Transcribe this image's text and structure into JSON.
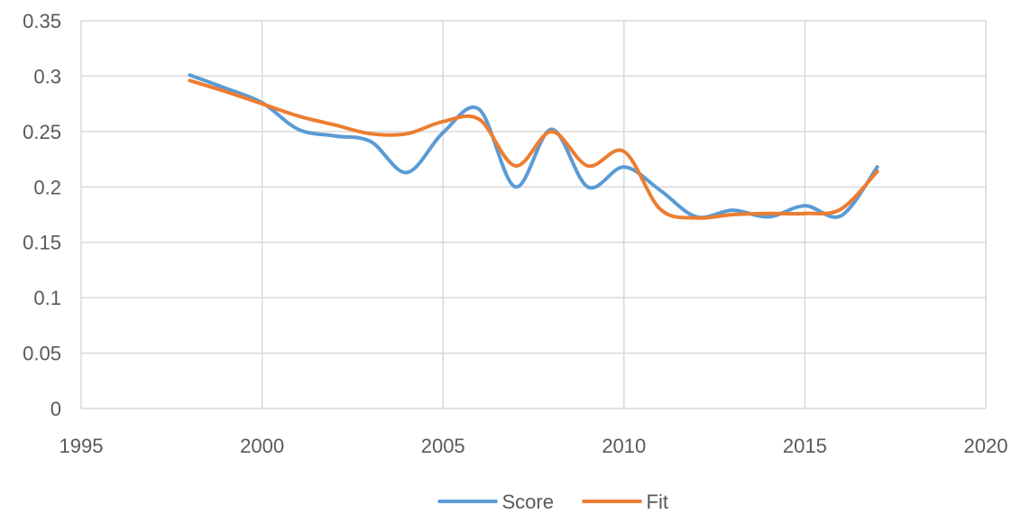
{
  "chart_data": {
    "type": "line",
    "title": "",
    "xlabel": "",
    "ylabel": "",
    "xlim": [
      1995,
      2020
    ],
    "ylim": [
      0,
      0.35
    ],
    "x_ticks": [
      "1995",
      "2000",
      "2005",
      "2010",
      "2015",
      "2020"
    ],
    "y_ticks": [
      "0",
      "0.05",
      "0.1",
      "0.15",
      "0.2",
      "0.25",
      "0.3",
      "0.35"
    ],
    "grid": true,
    "smooth": true,
    "legend_position": "bottom",
    "x": [
      1998,
      1999,
      2000,
      2001,
      2002,
      2003,
      2004,
      2005,
      2006,
      2007,
      2008,
      2009,
      2010,
      2011,
      2012,
      2013,
      2014,
      2015,
      2016,
      2017
    ],
    "series": [
      {
        "name": "Score",
        "color": "#5B9BD5",
        "values": [
          0.301,
          0.289,
          0.276,
          0.252,
          0.246,
          0.241,
          0.213,
          0.249,
          0.27,
          0.2,
          0.252,
          0.2,
          0.218,
          0.197,
          0.173,
          0.179,
          0.173,
          0.183,
          0.174,
          0.218
        ]
      },
      {
        "name": "Fit",
        "color": "#ED7D31",
        "values": [
          0.296,
          0.286,
          0.275,
          0.264,
          0.256,
          0.248,
          0.248,
          0.259,
          0.261,
          0.219,
          0.25,
          0.219,
          0.232,
          0.18,
          0.172,
          0.175,
          0.176,
          0.176,
          0.18,
          0.214
        ]
      }
    ]
  }
}
